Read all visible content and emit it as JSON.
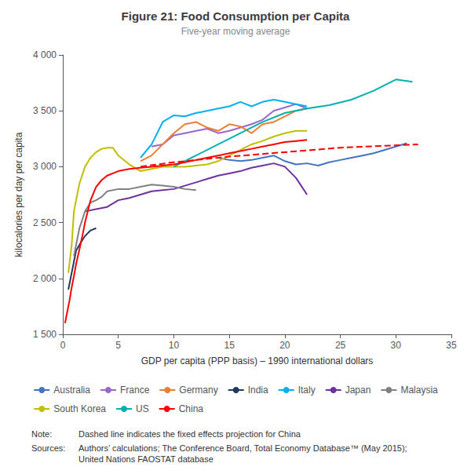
{
  "chart_data": {
    "type": "line",
    "title": "Figure 21: Food Consumption per Capita",
    "subtitle": "Five-year moving average",
    "xlabel": "GDP per capita (PPP basis) – 1990 international dollars",
    "ylabel": "kilocalories per day per capita",
    "xlim": [
      0,
      35
    ],
    "ylim": [
      1500,
      4000
    ],
    "xticks": [
      0,
      5,
      10,
      15,
      20,
      25,
      30,
      35
    ],
    "yticks": [
      {
        "value": 1500,
        "label": "1 500"
      },
      {
        "value": 2000,
        "label": "2 000"
      },
      {
        "value": 2500,
        "label": "2 500"
      },
      {
        "value": 3000,
        "label": "3 000"
      },
      {
        "value": 3500,
        "label": "3 500"
      },
      {
        "value": 4000,
        "label": "4 000"
      }
    ],
    "grid": false,
    "legend": "bottom",
    "annotations": [
      {
        "label": "Note:",
        "text": "Dashed line indicates the fixed effects projection for China"
      },
      {
        "label": "Sources:",
        "text": "Authors’ calculations; The Conference Board, Total Economy Database™ (May 2015);\nUnited Nations FAOSTAT database"
      }
    ],
    "series": [
      {
        "name": "Australia",
        "color": "#4472C4",
        "x": [
          14.0,
          15.0,
          16.0,
          17.0,
          18.0,
          19.0,
          20.0,
          21.0,
          22.0,
          23.0,
          24.0,
          25.0,
          26.0,
          27.0,
          28.0,
          29.0,
          30.0,
          31.0
        ],
        "values": [
          3080,
          3060,
          3050,
          3060,
          3080,
          3100,
          3050,
          3020,
          3030,
          3010,
          3040,
          3060,
          3080,
          3100,
          3120,
          3150,
          3180,
          3210
        ]
      },
      {
        "name": "France",
        "color": "#9966CC",
        "x": [
          8.0,
          9.0,
          10.0,
          11.0,
          12.0,
          13.0,
          14.0,
          15.0,
          16.0,
          17.0,
          18.0,
          19.0,
          20.0,
          21.0,
          22.0
        ],
        "values": [
          3180,
          3200,
          3280,
          3300,
          3320,
          3340,
          3300,
          3320,
          3350,
          3380,
          3420,
          3500,
          3530,
          3560,
          3520
        ]
      },
      {
        "name": "Germany",
        "color": "#ED7D31",
        "x": [
          7.0,
          8.0,
          9.0,
          10.0,
          11.0,
          12.0,
          13.0,
          14.0,
          15.0,
          16.0,
          17.0,
          18.0,
          19.0,
          20.0,
          21.0,
          22.0
        ],
        "values": [
          3050,
          3100,
          3200,
          3300,
          3380,
          3400,
          3350,
          3320,
          3380,
          3360,
          3300,
          3380,
          3400,
          3450,
          3500,
          3520
        ]
      },
      {
        "name": "India",
        "color": "#1F3864",
        "x": [
          0.5,
          0.8,
          1.0,
          1.2,
          1.5,
          1.8,
          2.0,
          2.2,
          2.5,
          3.0
        ],
        "values": [
          1900,
          2050,
          2150,
          2250,
          2300,
          2350,
          2380,
          2400,
          2430,
          2450
        ]
      },
      {
        "name": "Italy",
        "color": "#00B0F0",
        "x": [
          7.0,
          8.0,
          9.0,
          10.0,
          11.0,
          12.0,
          13.0,
          14.0,
          15.0,
          16.0,
          17.0,
          18.0,
          19.0,
          20.0,
          21.0,
          22.0
        ],
        "values": [
          3080,
          3200,
          3400,
          3460,
          3450,
          3480,
          3500,
          3520,
          3540,
          3580,
          3540,
          3580,
          3600,
          3580,
          3560,
          3540
        ]
      },
      {
        "name": "Japan",
        "color": "#7030A0",
        "x": [
          2.0,
          3.0,
          4.0,
          5.0,
          6.0,
          7.0,
          8.0,
          9.0,
          10.0,
          11.0,
          12.0,
          13.0,
          14.0,
          15.0,
          16.0,
          17.0,
          18.0,
          19.0,
          20.0,
          21.0,
          22.0
        ],
        "values": [
          2600,
          2620,
          2640,
          2700,
          2720,
          2750,
          2780,
          2790,
          2800,
          2830,
          2860,
          2890,
          2920,
          2940,
          2960,
          2990,
          3010,
          3030,
          3000,
          2900,
          2750
        ]
      },
      {
        "name": "Malaysia",
        "color": "#808080",
        "x": [
          1.0,
          1.5,
          2.0,
          2.5,
          3.0,
          3.5,
          4.0,
          5.0,
          6.0,
          7.0,
          8.0,
          9.0,
          10.0,
          11.0,
          12.0
        ],
        "values": [
          2200,
          2450,
          2600,
          2680,
          2700,
          2730,
          2780,
          2800,
          2800,
          2820,
          2840,
          2830,
          2820,
          2800,
          2790
        ]
      },
      {
        "name": "South Korea",
        "color": "#BFBF00",
        "x": [
          0.5,
          0.8,
          1.0,
          1.5,
          2.0,
          2.5,
          3.0,
          3.5,
          4.0,
          4.5,
          5.0,
          6.0,
          7.0,
          8.0,
          9.0,
          10.0,
          11.0,
          12.0,
          13.0,
          14.0,
          15.0,
          16.0,
          17.0,
          18.0,
          19.0,
          20.0,
          21.0,
          22.0
        ],
        "values": [
          2050,
          2300,
          2600,
          2850,
          3000,
          3080,
          3130,
          3160,
          3170,
          3170,
          3100,
          3020,
          2960,
          2980,
          3000,
          3000,
          3000,
          3010,
          3020,
          3050,
          3100,
          3150,
          3200,
          3230,
          3270,
          3300,
          3320,
          3320
        ]
      },
      {
        "name": "US",
        "color": "#00B0B0",
        "x": [
          10.0,
          12.0,
          14.0,
          16.0,
          18.0,
          20.0,
          22.0,
          24.0,
          26.0,
          28.0,
          30.0,
          31.5
        ],
        "values": [
          3000,
          3100,
          3200,
          3300,
          3400,
          3480,
          3520,
          3550,
          3600,
          3680,
          3780,
          3760
        ]
      },
      {
        "name": "China",
        "color": "#FF0000",
        "x": [
          0.2,
          0.4,
          0.6,
          0.8,
          1.0,
          1.2,
          1.5,
          1.8,
          2.0,
          2.5,
          3.0,
          3.5,
          4.0,
          5.0,
          6.0,
          7.0,
          8.0,
          9.0,
          10.0,
          11.0,
          12.0,
          13.0,
          14.0,
          15.0,
          16.0,
          17.0,
          18.0,
          19.0,
          20.0,
          21.0,
          22.0
        ],
        "values": [
          1600,
          1700,
          1800,
          1920,
          2020,
          2130,
          2260,
          2400,
          2500,
          2700,
          2820,
          2880,
          2920,
          2960,
          2980,
          2990,
          3000,
          3010,
          3020,
          3040,
          3060,
          3080,
          3100,
          3120,
          3140,
          3160,
          3180,
          3200,
          3220,
          3230,
          3240
        ]
      },
      {
        "color": "#FF0000",
        "line_style": "dashed",
        "x": [
          7.0,
          10.0,
          15.0,
          20.0,
          25.0,
          32.0
        ],
        "values": [
          3000,
          3040,
          3090,
          3130,
          3170,
          3200
        ]
      }
    ]
  }
}
